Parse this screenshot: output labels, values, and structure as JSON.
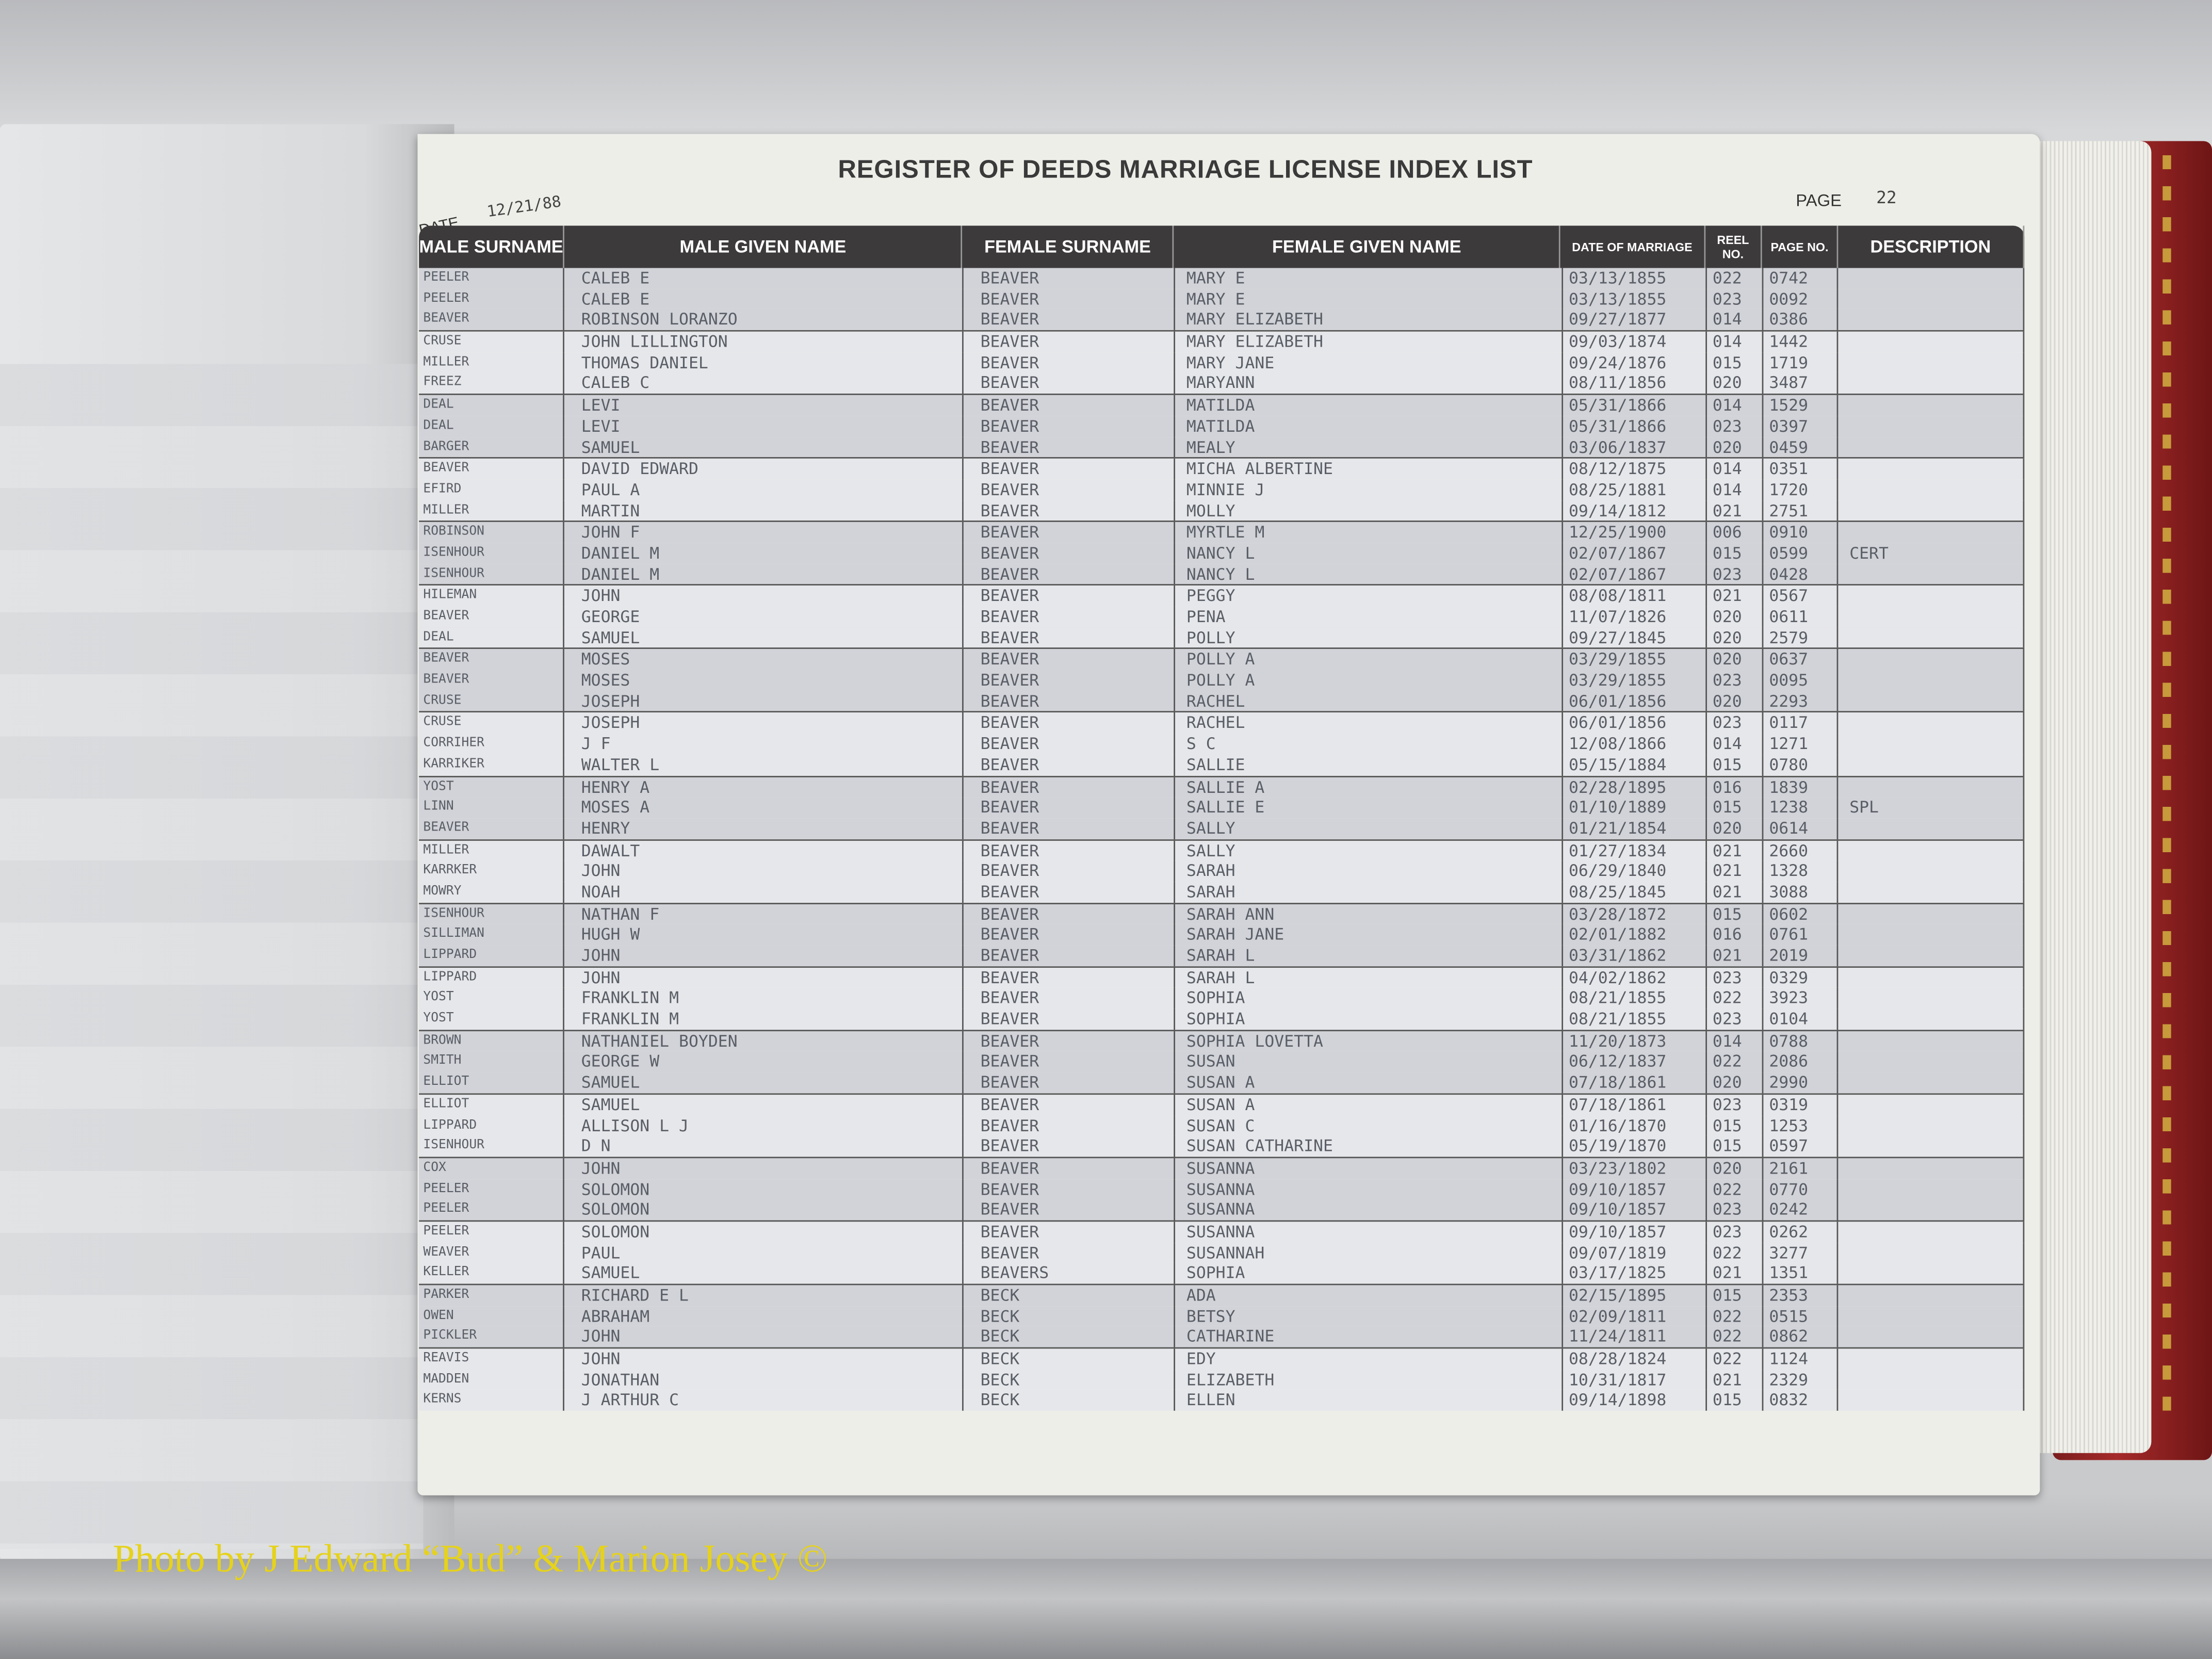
{
  "document": {
    "title": "REGISTER OF DEEDS MARRIAGE LICENSE INDEX LIST",
    "date_label": "DATE",
    "date_value": "12/21/88",
    "page_label": "PAGE",
    "page_value": "22"
  },
  "columns": [
    "MALE SURNAME",
    "MALE GIVEN NAME",
    "FEMALE SURNAME",
    "FEMALE GIVEN NAME",
    "DATE OF MARRIAGE",
    "REEL NO.",
    "PAGE NO.",
    "DESCRIPTION"
  ],
  "rows": [
    [
      "PEELER",
      "CALEB E",
      "BEAVER",
      "MARY E",
      "03/13/1855",
      "022",
      "0742",
      ""
    ],
    [
      "PEELER",
      "CALEB E",
      "BEAVER",
      "MARY E",
      "03/13/1855",
      "023",
      "0092",
      ""
    ],
    [
      "BEAVER",
      "ROBINSON LORANZO",
      "BEAVER",
      "MARY ELIZABETH",
      "09/27/1877",
      "014",
      "0386",
      ""
    ],
    [
      "CRUSE",
      "JOHN LILLINGTON",
      "BEAVER",
      "MARY ELIZABETH",
      "09/03/1874",
      "014",
      "1442",
      ""
    ],
    [
      "MILLER",
      "THOMAS DANIEL",
      "BEAVER",
      "MARY JANE",
      "09/24/1876",
      "015",
      "1719",
      ""
    ],
    [
      "FREEZ",
      "CALEB C",
      "BEAVER",
      "MARYANN",
      "08/11/1856",
      "020",
      "3487",
      ""
    ],
    [
      "DEAL",
      "LEVI",
      "BEAVER",
      "MATILDA",
      "05/31/1866",
      "014",
      "1529",
      ""
    ],
    [
      "DEAL",
      "LEVI",
      "BEAVER",
      "MATILDA",
      "05/31/1866",
      "023",
      "0397",
      ""
    ],
    [
      "BARGER",
      "SAMUEL",
      "BEAVER",
      "MEALY",
      "03/06/1837",
      "020",
      "0459",
      ""
    ],
    [
      "BEAVER",
      "DAVID EDWARD",
      "BEAVER",
      "MICHA ALBERTINE",
      "08/12/1875",
      "014",
      "0351",
      ""
    ],
    [
      "EFIRD",
      "PAUL A",
      "BEAVER",
      "MINNIE J",
      "08/25/1881",
      "014",
      "1720",
      ""
    ],
    [
      "MILLER",
      "MARTIN",
      "BEAVER",
      "MOLLY",
      "09/14/1812",
      "021",
      "2751",
      ""
    ],
    [
      "ROBINSON",
      "JOHN F",
      "BEAVER",
      "MYRTLE M",
      "12/25/1900",
      "006",
      "0910",
      ""
    ],
    [
      "ISENHOUR",
      "DANIEL M",
      "BEAVER",
      "NANCY L",
      "02/07/1867",
      "015",
      "0599",
      "CERT"
    ],
    [
      "ISENHOUR",
      "DANIEL M",
      "BEAVER",
      "NANCY L",
      "02/07/1867",
      "023",
      "0428",
      ""
    ],
    [
      "HILEMAN",
      "JOHN",
      "BEAVER",
      "PEGGY",
      "08/08/1811",
      "021",
      "0567",
      ""
    ],
    [
      "BEAVER",
      "GEORGE",
      "BEAVER",
      "PENA",
      "11/07/1826",
      "020",
      "0611",
      ""
    ],
    [
      "DEAL",
      "SAMUEL",
      "BEAVER",
      "POLLY",
      "09/27/1845",
      "020",
      "2579",
      ""
    ],
    [
      "BEAVER",
      "MOSES",
      "BEAVER",
      "POLLY A",
      "03/29/1855",
      "020",
      "0637",
      ""
    ],
    [
      "BEAVER",
      "MOSES",
      "BEAVER",
      "POLLY A",
      "03/29/1855",
      "023",
      "0095",
      ""
    ],
    [
      "CRUSE",
      "JOSEPH",
      "BEAVER",
      "RACHEL",
      "06/01/1856",
      "020",
      "2293",
      ""
    ],
    [
      "CRUSE",
      "JOSEPH",
      "BEAVER",
      "RACHEL",
      "06/01/1856",
      "023",
      "0117",
      ""
    ],
    [
      "CORRIHER",
      "J F",
      "BEAVER",
      "S C",
      "12/08/1866",
      "014",
      "1271",
      ""
    ],
    [
      "KARRIKER",
      "WALTER L",
      "BEAVER",
      "SALLIE",
      "05/15/1884",
      "015",
      "0780",
      ""
    ],
    [
      "YOST",
      "HENRY A",
      "BEAVER",
      "SALLIE A",
      "02/28/1895",
      "016",
      "1839",
      ""
    ],
    [
      "LINN",
      "MOSES A",
      "BEAVER",
      "SALLIE E",
      "01/10/1889",
      "015",
      "1238",
      "SPL"
    ],
    [
      "BEAVER",
      "HENRY",
      "BEAVER",
      "SALLY",
      "01/21/1854",
      "020",
      "0614",
      ""
    ],
    [
      "MILLER",
      "DAWALT",
      "BEAVER",
      "SALLY",
      "01/27/1834",
      "021",
      "2660",
      ""
    ],
    [
      "KARRKER",
      "JOHN",
      "BEAVER",
      "SARAH",
      "06/29/1840",
      "021",
      "1328",
      ""
    ],
    [
      "MOWRY",
      "NOAH",
      "BEAVER",
      "SARAH",
      "08/25/1845",
      "021",
      "3088",
      ""
    ],
    [
      "ISENHOUR",
      "NATHAN F",
      "BEAVER",
      "SARAH ANN",
      "03/28/1872",
      "015",
      "0602",
      ""
    ],
    [
      "SILLIMAN",
      "HUGH W",
      "BEAVER",
      "SARAH JANE",
      "02/01/1882",
      "016",
      "0761",
      ""
    ],
    [
      "LIPPARD",
      "JOHN",
      "BEAVER",
      "SARAH L",
      "03/31/1862",
      "021",
      "2019",
      ""
    ],
    [
      "LIPPARD",
      "JOHN",
      "BEAVER",
      "SARAH L",
      "04/02/1862",
      "023",
      "0329",
      ""
    ],
    [
      "YOST",
      "FRANKLIN M",
      "BEAVER",
      "SOPHIA",
      "08/21/1855",
      "022",
      "3923",
      ""
    ],
    [
      "YOST",
      "FRANKLIN M",
      "BEAVER",
      "SOPHIA",
      "08/21/1855",
      "023",
      "0104",
      ""
    ],
    [
      "BROWN",
      "NATHANIEL BOYDEN",
      "BEAVER",
      "SOPHIA LOVETTA",
      "11/20/1873",
      "014",
      "0788",
      ""
    ],
    [
      "SMITH",
      "GEORGE W",
      "BEAVER",
      "SUSAN",
      "06/12/1837",
      "022",
      "2086",
      ""
    ],
    [
      "ELLIOT",
      "SAMUEL",
      "BEAVER",
      "SUSAN A",
      "07/18/1861",
      "020",
      "2990",
      ""
    ],
    [
      "ELLIOT",
      "SAMUEL",
      "BEAVER",
      "SUSAN A",
      "07/18/1861",
      "023",
      "0319",
      ""
    ],
    [
      "LIPPARD",
      "ALLISON L J",
      "BEAVER",
      "SUSAN C",
      "01/16/1870",
      "015",
      "1253",
      ""
    ],
    [
      "ISENHOUR",
      "D N",
      "BEAVER",
      "SUSAN CATHARINE",
      "05/19/1870",
      "015",
      "0597",
      ""
    ],
    [
      "COX",
      "JOHN",
      "BEAVER",
      "SUSANNA",
      "03/23/1802",
      "020",
      "2161",
      ""
    ],
    [
      "PEELER",
      "SOLOMON",
      "BEAVER",
      "SUSANNA",
      "09/10/1857",
      "022",
      "0770",
      ""
    ],
    [
      "PEELER",
      "SOLOMON",
      "BEAVER",
      "SUSANNA",
      "09/10/1857",
      "023",
      "0242",
      ""
    ],
    [
      "PEELER",
      "SOLOMON",
      "BEAVER",
      "SUSANNA",
      "09/10/1857",
      "023",
      "0262",
      ""
    ],
    [
      "WEAVER",
      "PAUL",
      "BEAVER",
      "SUSANNAH",
      "09/07/1819",
      "022",
      "3277",
      ""
    ],
    [
      "KELLER",
      "SAMUEL",
      "BEAVERS",
      "SOPHIA",
      "03/17/1825",
      "021",
      "1351",
      ""
    ],
    [
      "PARKER",
      "RICHARD E L",
      "BECK",
      "ADA",
      "02/15/1895",
      "015",
      "2353",
      ""
    ],
    [
      "OWEN",
      "ABRAHAM",
      "BECK",
      "BETSY",
      "02/09/1811",
      "022",
      "0515",
      ""
    ],
    [
      "PICKLER",
      "JOHN",
      "BECK",
      "CATHARINE",
      "11/24/1811",
      "022",
      "0862",
      ""
    ],
    [
      "REAVIS",
      "JOHN",
      "BECK",
      "EDY",
      "08/28/1824",
      "022",
      "1124",
      ""
    ],
    [
      "MADDEN",
      "JONATHAN",
      "BECK",
      "ELIZABETH",
      "10/31/1817",
      "021",
      "2329",
      ""
    ],
    [
      "KERNS",
      "J ARTHUR C",
      "BECK",
      "ELLEN",
      "09/14/1898",
      "015",
      "0832",
      ""
    ]
  ],
  "watermark": "Photo by J Edward “Bud” & Marion Josey ©",
  "colors": {
    "header_band": "#3d3a3c",
    "shaded_row": "#d1d3d8",
    "binder": "#a52a2a",
    "watermark": "#e6d21a"
  }
}
